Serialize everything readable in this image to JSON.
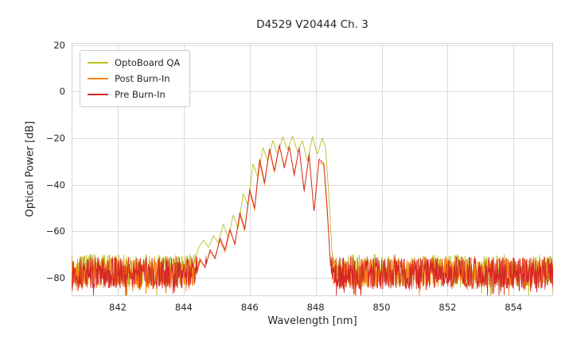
{
  "chart_data": {
    "type": "line",
    "title": "D4529 V20444 Ch. 3",
    "xlabel": "Wavelength [nm]",
    "ylabel": "Optical Power [dB]",
    "xlim": [
      840.6,
      855.2
    ],
    "ylim": [
      -88,
      21
    ],
    "xticks": [
      842,
      844,
      846,
      848,
      850,
      852,
      854
    ],
    "yticks": [
      20,
      0,
      -20,
      -40,
      -60,
      -80
    ],
    "grid": true,
    "grid_color": "#dbdbdb",
    "frame_color": "#d4d4d4",
    "text_color": "#262626",
    "background_color": "#ffffff",
    "legend_position": "upper left",
    "series": [
      {
        "name": "OptoBoard QA",
        "color": "#bcbd22",
        "noise_floor": -77,
        "noise_span": 14,
        "seed": 7,
        "envelope": [
          [
            844.2,
            -80
          ],
          [
            844.45,
            -67
          ],
          [
            844.6,
            -64
          ],
          [
            844.75,
            -67
          ],
          [
            844.9,
            -62
          ],
          [
            845.05,
            -65
          ],
          [
            845.2,
            -57
          ],
          [
            845.35,
            -63
          ],
          [
            845.5,
            -53
          ],
          [
            845.65,
            -59
          ],
          [
            845.8,
            -44
          ],
          [
            845.95,
            -49
          ],
          [
            846.1,
            -31
          ],
          [
            846.25,
            -37
          ],
          [
            846.4,
            -24
          ],
          [
            846.55,
            -30
          ],
          [
            846.7,
            -21
          ],
          [
            846.85,
            -27
          ],
          [
            847.0,
            -19.5
          ],
          [
            847.15,
            -25
          ],
          [
            847.3,
            -19
          ],
          [
            847.45,
            -26
          ],
          [
            847.6,
            -21
          ],
          [
            847.75,
            -30
          ],
          [
            847.9,
            -19.5
          ],
          [
            848.05,
            -27
          ],
          [
            848.2,
            -20
          ],
          [
            848.3,
            -24
          ],
          [
            848.4,
            -45
          ],
          [
            848.5,
            -70
          ],
          [
            848.6,
            -80
          ]
        ]
      },
      {
        "name": "Post Burn-In",
        "color": "#ff7f0e",
        "noise_floor": -78,
        "noise_span": 13,
        "seed": 11,
        "envelope": [
          [
            844.3,
            -83
          ],
          [
            844.5,
            -73
          ],
          [
            844.65,
            -75
          ],
          [
            844.8,
            -69
          ],
          [
            844.95,
            -71
          ],
          [
            845.1,
            -64
          ],
          [
            845.25,
            -69
          ],
          [
            845.4,
            -60
          ],
          [
            845.55,
            -65
          ],
          [
            845.7,
            -53
          ],
          [
            845.85,
            -60
          ],
          [
            846.0,
            -43
          ],
          [
            846.15,
            -51
          ],
          [
            846.3,
            -30
          ],
          [
            846.45,
            -40
          ],
          [
            846.6,
            -25
          ],
          [
            846.75,
            -35
          ],
          [
            846.9,
            -23.5
          ],
          [
            847.05,
            -32
          ],
          [
            847.2,
            -24
          ],
          [
            847.35,
            -35
          ],
          [
            847.5,
            -24.5
          ],
          [
            847.65,
            -42
          ],
          [
            847.8,
            -28
          ],
          [
            847.95,
            -51
          ],
          [
            848.1,
            -30
          ],
          [
            848.25,
            -32
          ],
          [
            848.35,
            -52
          ],
          [
            848.45,
            -74
          ],
          [
            848.55,
            -84
          ]
        ]
      },
      {
        "name": "Pre Burn-In",
        "color": "#d62728",
        "noise_floor": -78,
        "noise_span": 14,
        "seed": 13,
        "envelope": [
          [
            844.3,
            -84
          ],
          [
            844.5,
            -72
          ],
          [
            844.65,
            -76
          ],
          [
            844.8,
            -68
          ],
          [
            844.95,
            -72
          ],
          [
            845.1,
            -63
          ],
          [
            845.25,
            -68
          ],
          [
            845.4,
            -59
          ],
          [
            845.55,
            -66
          ],
          [
            845.7,
            -52
          ],
          [
            845.85,
            -59
          ],
          [
            846.0,
            -42
          ],
          [
            846.15,
            -50
          ],
          [
            846.3,
            -29
          ],
          [
            846.45,
            -39
          ],
          [
            846.6,
            -24.5
          ],
          [
            846.75,
            -34
          ],
          [
            846.9,
            -23
          ],
          [
            847.05,
            -33
          ],
          [
            847.2,
            -23.5
          ],
          [
            847.35,
            -36
          ],
          [
            847.5,
            -24
          ],
          [
            847.65,
            -43
          ],
          [
            847.8,
            -27
          ],
          [
            847.95,
            -52
          ],
          [
            848.1,
            -29
          ],
          [
            848.25,
            -31
          ],
          [
            848.35,
            -50
          ],
          [
            848.45,
            -75
          ],
          [
            848.55,
            -85
          ]
        ]
      }
    ]
  }
}
